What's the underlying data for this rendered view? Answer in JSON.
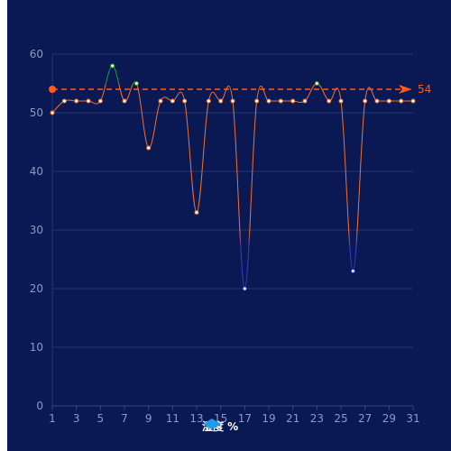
{
  "chart_data": {
    "type": "line",
    "x": [
      1,
      2,
      3,
      4,
      5,
      6,
      7,
      8,
      9,
      10,
      11,
      12,
      13,
      14,
      15,
      16,
      17,
      18,
      19,
      20,
      21,
      22,
      23,
      24,
      25,
      26,
      27,
      28,
      29,
      30,
      31
    ],
    "series": [
      {
        "name": "湿度 %",
        "values": [
          50,
          52,
          52,
          52,
          52,
          58,
          52,
          55,
          44,
          52,
          52,
          52,
          33,
          52,
          52,
          52,
          20,
          52,
          52,
          52,
          52,
          52,
          55,
          52,
          52,
          23,
          52,
          52,
          52,
          52,
          52
        ]
      }
    ],
    "xticks": [
      "1",
      "3",
      "5",
      "7",
      "9",
      "11",
      "13",
      "15",
      "17",
      "19",
      "21",
      "23",
      "25",
      "27",
      "29",
      "31"
    ],
    "yticks": [
      "0",
      "10",
      "20",
      "30",
      "40",
      "50",
      "60"
    ],
    "ylim": [
      0,
      60
    ],
    "xlim": [
      1,
      31
    ],
    "markline": {
      "value": 54,
      "label": "54",
      "color": "#ff5b1a"
    },
    "colors": {
      "background": "#0a1854",
      "grid": "#25346e",
      "axis_label": "#8d99c7",
      "line_normal": "#f0722e",
      "line_high": "#14a31c",
      "line_low": "#3a38c2",
      "legend_icon": "#1e9bef"
    },
    "legend": {
      "label": "湿度 %",
      "position": "bottom-center"
    }
  }
}
